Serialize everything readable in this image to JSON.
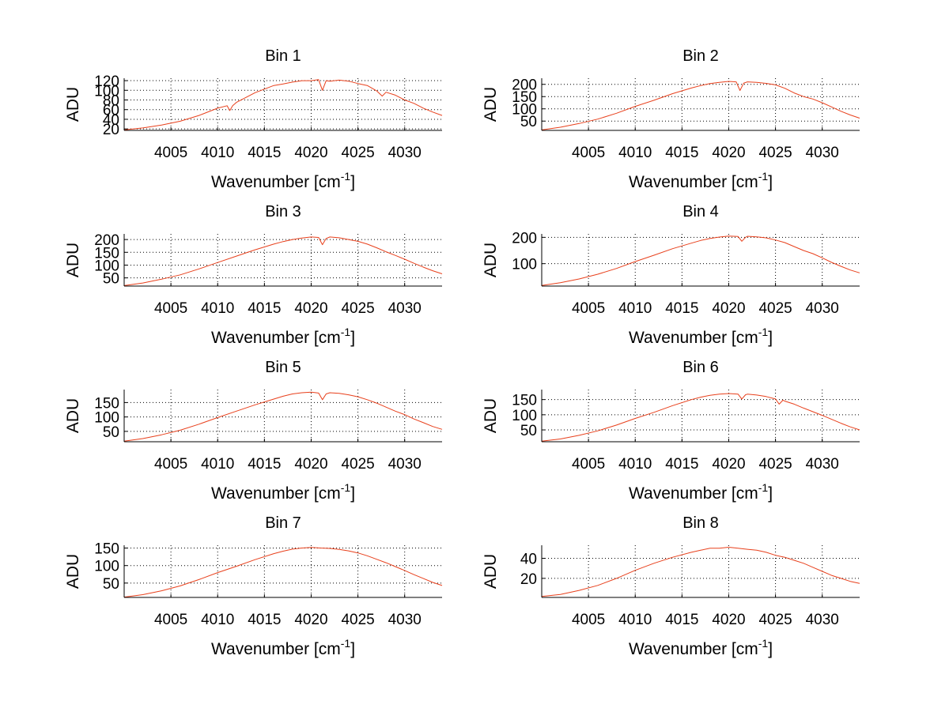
{
  "figure": {
    "background": "#ffffff",
    "line_color": "#e8401c"
  },
  "chart_data": [
    {
      "type": "line",
      "title": "Bin 1",
      "xlabel": "Wavenumber [cm",
      "xlabel_sup": "-1",
      "xlabel_end": "]",
      "ylabel": "ADU",
      "xlim": [
        4000,
        4034
      ],
      "ylim": [
        17,
        125
      ],
      "xticks": [
        4005,
        4010,
        4015,
        4020,
        4025,
        4030
      ],
      "xtick_labels": [
        "4005",
        "4010",
        "4015",
        "4020",
        "4025",
        "4030"
      ],
      "yticks": [
        20,
        40,
        60,
        80,
        100,
        120
      ],
      "ytick_labels": [
        "20",
        "40",
        "60",
        "80",
        "100",
        "120"
      ],
      "grid": true,
      "series": [
        {
          "name": "Bin 1",
          "x": [
            4000,
            4002,
            4004,
            4006,
            4008,
            4010,
            4011,
            4011.3,
            4011.6,
            4012,
            4014,
            4016,
            4017,
            4018,
            4019,
            4020,
            4020.8,
            4021.2,
            4021.6,
            4022,
            4023,
            4024,
            4025,
            4026,
            4027,
            4027.6,
            4028,
            4029,
            4030,
            4031,
            4032,
            4033,
            4034
          ],
          "y": [
            18,
            22,
            28,
            36,
            48,
            63,
            68,
            58,
            68,
            75,
            95,
            110,
            113,
            117,
            120,
            120,
            122,
            100,
            120,
            119,
            121,
            119,
            114,
            110,
            99,
            88,
            96,
            90,
            80,
            73,
            63,
            55,
            48
          ]
        }
      ]
    },
    {
      "type": "line",
      "title": "Bin 2",
      "xlabel": "Wavenumber [cm",
      "xlabel_sup": "-1",
      "xlabel_end": "]",
      "ylabel": "ADU",
      "xlim": [
        4000,
        4034
      ],
      "ylim": [
        12,
        225
      ],
      "xticks": [
        4005,
        4010,
        4015,
        4020,
        4025,
        4030
      ],
      "xtick_labels": [
        "4005",
        "4010",
        "4015",
        "4020",
        "4025",
        "4030"
      ],
      "yticks": [
        50,
        100,
        150,
        200
      ],
      "ytick_labels": [
        "50",
        "100",
        "150",
        "200"
      ],
      "grid": true,
      "series": [
        {
          "name": "Bin 2",
          "x": [
            4000,
            4002,
            4004,
            4006,
            4008,
            4010,
            4012,
            4014,
            4016,
            4017,
            4018,
            4019,
            4020,
            4020.8,
            4021.2,
            4021.6,
            4022,
            4023,
            4024,
            4025,
            4026,
            4027,
            4028,
            4029,
            4030,
            4031,
            4032,
            4033,
            4034
          ],
          "y": [
            14,
            25,
            40,
            58,
            82,
            110,
            135,
            162,
            185,
            195,
            203,
            208,
            212,
            210,
            175,
            205,
            210,
            208,
            204,
            198,
            184,
            165,
            150,
            140,
            125,
            108,
            90,
            75,
            62
          ]
        }
      ]
    },
    {
      "type": "line",
      "title": "Bin 3",
      "xlabel": "Wavenumber [cm",
      "xlabel_sup": "-1",
      "xlabel_end": "]",
      "ylabel": "ADU",
      "xlim": [
        4000,
        4034
      ],
      "ylim": [
        18,
        222
      ],
      "xticks": [
        4005,
        4010,
        4015,
        4020,
        4025,
        4030
      ],
      "xtick_labels": [
        "4005",
        "4010",
        "4015",
        "4020",
        "4025",
        "4030"
      ],
      "yticks": [
        50,
        100,
        150,
        200
      ],
      "ytick_labels": [
        "50",
        "100",
        "150",
        "200"
      ],
      "grid": true,
      "series": [
        {
          "name": "Bin 3",
          "x": [
            4000,
            4002,
            4004,
            4006,
            4008,
            4010,
            4012,
            4014,
            4016,
            4017,
            4018,
            4019,
            4020,
            4020.8,
            4021.2,
            4021.6,
            4022,
            4023,
            4024,
            4025,
            4026,
            4027,
            4028,
            4029,
            4030,
            4031,
            4032,
            4033,
            4034
          ],
          "y": [
            20,
            30,
            45,
            62,
            85,
            110,
            135,
            160,
            182,
            192,
            200,
            206,
            210,
            208,
            180,
            204,
            210,
            207,
            200,
            193,
            182,
            168,
            152,
            138,
            123,
            107,
            92,
            78,
            66
          ]
        }
      ]
    },
    {
      "type": "line",
      "title": "Bin 4",
      "xlabel": "Wavenumber [cm",
      "xlabel_sup": "-1",
      "xlabel_end": "]",
      "ylabel": "ADU",
      "xlim": [
        4000,
        4034
      ],
      "ylim": [
        15,
        213
      ],
      "xticks": [
        4005,
        4010,
        4015,
        4020,
        4025,
        4030
      ],
      "xtick_labels": [
        "4005",
        "4010",
        "4015",
        "4020",
        "4025",
        "4030"
      ],
      "yticks": [
        100,
        200
      ],
      "ytick_labels": [
        "100",
        "200"
      ],
      "grid": true,
      "series": [
        {
          "name": "Bin 4",
          "x": [
            4000,
            4002,
            4004,
            4006,
            4008,
            4010,
            4012,
            4014,
            4016,
            4017,
            4018,
            4019,
            4020,
            4021,
            4021.4,
            4021.8,
            4022,
            4023,
            4024,
            4025,
            4026,
            4027,
            4028,
            4029,
            4030,
            4031,
            4032,
            4033,
            4034
          ],
          "y": [
            17,
            28,
            42,
            60,
            82,
            108,
            132,
            157,
            178,
            188,
            196,
            201,
            205,
            203,
            185,
            200,
            204,
            202,
            198,
            190,
            180,
            165,
            150,
            138,
            122,
            105,
            90,
            76,
            65
          ]
        }
      ]
    },
    {
      "type": "line",
      "title": "Bin 5",
      "xlabel": "Wavenumber [cm",
      "xlabel_sup": "-1",
      "xlabel_end": "]",
      "ylabel": "ADU",
      "xlim": [
        4000,
        4034
      ],
      "ylim": [
        14,
        195
      ],
      "xticks": [
        4005,
        4010,
        4015,
        4020,
        4025,
        4030
      ],
      "xtick_labels": [
        "4005",
        "4010",
        "4015",
        "4020",
        "4025",
        "4030"
      ],
      "yticks": [
        50,
        100,
        150
      ],
      "ytick_labels": [
        "50",
        "100",
        "150"
      ],
      "grid": true,
      "series": [
        {
          "name": "Bin 5",
          "x": [
            4000,
            4002,
            4004,
            4006,
            4008,
            4010,
            4012,
            4014,
            4016,
            4017,
            4018,
            4019,
            4020,
            4020.8,
            4021.2,
            4021.6,
            4022,
            4023,
            4024,
            4025,
            4026,
            4027,
            4028,
            4029,
            4030,
            4031,
            4032,
            4033,
            4034
          ],
          "y": [
            16,
            25,
            38,
            54,
            75,
            98,
            120,
            142,
            162,
            172,
            180,
            184,
            186,
            183,
            160,
            180,
            184,
            182,
            177,
            170,
            160,
            148,
            134,
            120,
            108,
            93,
            80,
            67,
            57
          ]
        }
      ]
    },
    {
      "type": "line",
      "title": "Bin 6",
      "xlabel": "Wavenumber [cm",
      "xlabel_sup": "-1",
      "xlabel_end": "]",
      "ylabel": "ADU",
      "xlim": [
        4000,
        4034
      ],
      "ylim": [
        11,
        183
      ],
      "xticks": [
        4005,
        4010,
        4015,
        4020,
        4025,
        4030
      ],
      "xtick_labels": [
        "4005",
        "4010",
        "4015",
        "4020",
        "4025",
        "4030"
      ],
      "yticks": [
        50,
        100,
        150
      ],
      "ytick_labels": [
        "50",
        "100",
        "150"
      ],
      "grid": true,
      "series": [
        {
          "name": "Bin 6",
          "x": [
            4000,
            4002,
            4004,
            4006,
            4008,
            4010,
            4012,
            4014,
            4016,
            4017,
            4018,
            4019,
            4020,
            4021,
            4021.4,
            4021.8,
            4022,
            4023,
            4024,
            4025,
            4025.4,
            4025.8,
            4026,
            4027,
            4028,
            4029,
            4030,
            4031,
            4032,
            4033,
            4034
          ],
          "y": [
            13,
            20,
            32,
            47,
            66,
            88,
            108,
            130,
            150,
            158,
            164,
            168,
            170,
            168,
            152,
            166,
            168,
            165,
            160,
            152,
            135,
            148,
            145,
            135,
            122,
            110,
            98,
            85,
            72,
            60,
            50
          ]
        }
      ]
    },
    {
      "type": "line",
      "title": "Bin 7",
      "xlabel": "Wavenumber [cm",
      "xlabel_sup": "-1",
      "xlabel_end": "]",
      "ylabel": "ADU",
      "xlim": [
        4000,
        4034
      ],
      "ylim": [
        9,
        158
      ],
      "xticks": [
        4005,
        4010,
        4015,
        4020,
        4025,
        4030
      ],
      "xtick_labels": [
        "4005",
        "4010",
        "4015",
        "4020",
        "4025",
        "4030"
      ],
      "yticks": [
        50,
        100,
        150
      ],
      "ytick_labels": [
        "50",
        "100",
        "150"
      ],
      "grid": true,
      "series": [
        {
          "name": "Bin 7",
          "x": [
            4000,
            4002,
            4004,
            4006,
            4008,
            4010,
            4012,
            4014,
            4016,
            4017,
            4018,
            4019,
            4020,
            4021,
            4022,
            4023,
            4024,
            4025,
            4026,
            4027,
            4028,
            4029,
            4030,
            4031,
            4032,
            4033,
            4034
          ],
          "y": [
            10,
            17,
            28,
            42,
            60,
            80,
            98,
            117,
            134,
            141,
            147,
            150,
            152,
            150,
            149,
            146,
            142,
            136,
            128,
            118,
            108,
            97,
            86,
            74,
            63,
            52,
            43
          ]
        }
      ]
    },
    {
      "type": "line",
      "title": "Bin 8",
      "xlabel": "Wavenumber [cm",
      "xlabel_sup": "-1",
      "xlabel_end": "]",
      "ylabel": "ADU",
      "xlim": [
        4000,
        4034
      ],
      "ylim": [
        1,
        53
      ],
      "xticks": [
        4005,
        4010,
        4015,
        4020,
        4025,
        4030
      ],
      "xtick_labels": [
        "4005",
        "4010",
        "4015",
        "4020",
        "4025",
        "4030"
      ],
      "yticks": [
        20,
        40
      ],
      "ytick_labels": [
        "20",
        "40"
      ],
      "grid": true,
      "series": [
        {
          "name": "Bin 8",
          "x": [
            4000,
            4002,
            4004,
            4006,
            4008,
            4010,
            4012,
            4014,
            4016,
            4017,
            4018,
            4019,
            4020,
            4021,
            4022,
            4023,
            4024,
            4025,
            4026,
            4027,
            4028,
            4029,
            4030,
            4031,
            4032,
            4033,
            4034
          ],
          "y": [
            2,
            4,
            8,
            13,
            20,
            28,
            35,
            41,
            46,
            48,
            50,
            50,
            51,
            50,
            49,
            48,
            46,
            43,
            41,
            38,
            35,
            31,
            27,
            23,
            20,
            17,
            15
          ]
        }
      ]
    }
  ]
}
